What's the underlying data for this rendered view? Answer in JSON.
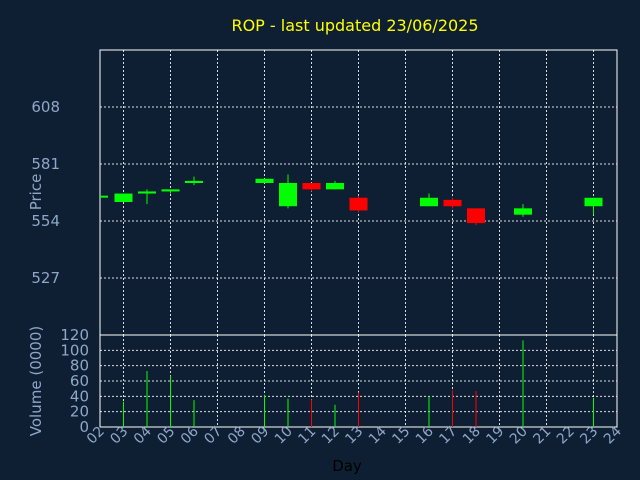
{
  "chart_data": [
    {
      "type": "candlestick",
      "title": "ROP - last updated 23/06/2025",
      "ylabel": "Price",
      "ylim": [
        500,
        635
      ],
      "yticks": [
        527,
        554,
        581,
        608
      ],
      "x_categories": [
        "02",
        "03",
        "04",
        "05",
        "06",
        "07",
        "08",
        "09",
        "10",
        "11",
        "12",
        "13",
        "14",
        "15",
        "16",
        "17",
        "18",
        "19",
        "20",
        "21",
        "22",
        "23",
        "24"
      ],
      "grid": true,
      "up_color": "#00ff00",
      "down_color": "#ff0000",
      "candles": [
        {
          "day": "02",
          "open": 566,
          "close": 566,
          "high": 566,
          "low": 566
        },
        {
          "day": "03",
          "open": 563,
          "close": 567,
          "high": 567,
          "low": 563
        },
        {
          "day": "04",
          "open": 567,
          "close": 568,
          "high": 569,
          "low": 562
        },
        {
          "day": "05",
          "open": 568,
          "close": 569,
          "high": 569,
          "low": 567
        },
        {
          "day": "06",
          "open": 572,
          "close": 573,
          "high": 575,
          "low": 571
        },
        {
          "day": "09",
          "open": 572,
          "close": 574,
          "high": 574,
          "low": 572
        },
        {
          "day": "10",
          "open": 561,
          "close": 572,
          "high": 576,
          "low": 560
        },
        {
          "day": "11",
          "open": 572,
          "close": 569,
          "high": 572,
          "low": 568
        },
        {
          "day": "12",
          "open": 569,
          "close": 572,
          "high": 573,
          "low": 569
        },
        {
          "day": "13",
          "open": 565,
          "close": 559,
          "high": 566,
          "low": 558
        },
        {
          "day": "16",
          "open": 561,
          "close": 565,
          "high": 567,
          "low": 561
        },
        {
          "day": "17",
          "open": 564,
          "close": 561,
          "high": 565,
          "low": 560
        },
        {
          "day": "18",
          "open": 560,
          "close": 553,
          "high": 560,
          "low": 552
        },
        {
          "day": "20",
          "open": 557,
          "close": 560,
          "high": 562,
          "low": 556
        },
        {
          "day": "23",
          "open": 561,
          "close": 565,
          "high": 565,
          "low": 557
        }
      ]
    },
    {
      "type": "bar",
      "ylabel": "Volume (0000)",
      "xlabel": "Day",
      "ylim": [
        0,
        120
      ],
      "yticks": [
        0,
        20,
        40,
        60,
        80,
        100,
        120
      ],
      "x_categories": [
        "02",
        "03",
        "04",
        "05",
        "06",
        "07",
        "08",
        "09",
        "10",
        "11",
        "12",
        "13",
        "14",
        "15",
        "16",
        "17",
        "18",
        "19",
        "20",
        "21",
        "22",
        "23",
        "24"
      ],
      "bars": [
        {
          "day": "03",
          "value": 33,
          "color": "#00ff00"
        },
        {
          "day": "04",
          "value": 73,
          "color": "#00ff00"
        },
        {
          "day": "05",
          "value": 67,
          "color": "#00ff00"
        },
        {
          "day": "06",
          "value": 35,
          "color": "#00ff00"
        },
        {
          "day": "09",
          "value": 42,
          "color": "#00ff00"
        },
        {
          "day": "10",
          "value": 37,
          "color": "#00ff00"
        },
        {
          "day": "11",
          "value": 36,
          "color": "#ff0000"
        },
        {
          "day": "12",
          "value": 29,
          "color": "#00ff00"
        },
        {
          "day": "13",
          "value": 45,
          "color": "#ff0000"
        },
        {
          "day": "16",
          "value": 40,
          "color": "#00ff00"
        },
        {
          "day": "17",
          "value": 48,
          "color": "#ff0000"
        },
        {
          "day": "18",
          "value": 47,
          "color": "#ff0000"
        },
        {
          "day": "20",
          "value": 113,
          "color": "#00ff00"
        },
        {
          "day": "23",
          "value": 38,
          "color": "#00ff00"
        }
      ]
    }
  ]
}
